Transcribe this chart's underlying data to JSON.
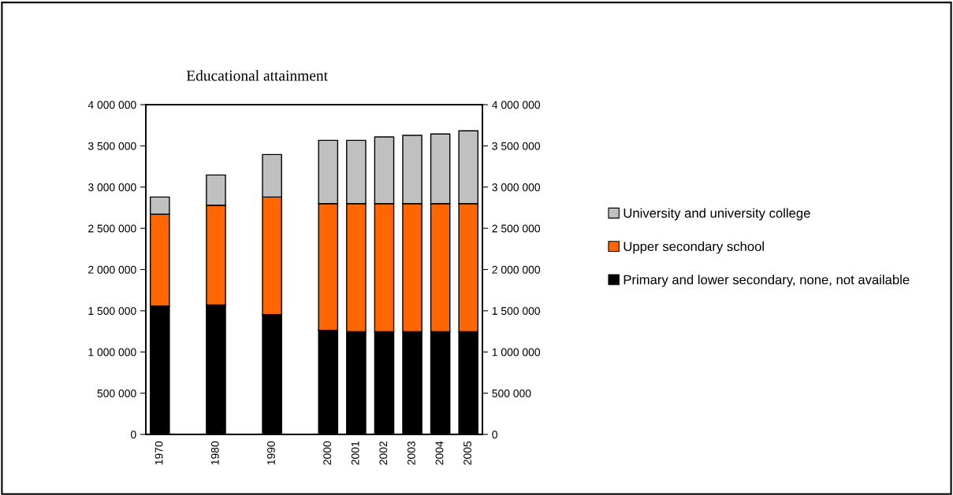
{
  "chart_data": {
    "type": "bar",
    "stacked": true,
    "title": "Educational attainment",
    "categories": [
      "1970",
      null,
      "1980",
      null,
      "1990",
      null,
      "2000",
      "2001",
      "2002",
      "2003",
      "2004",
      "2005"
    ],
    "series": [
      {
        "name": "Primary and lower secondary, none, not available",
        "color": "#000000",
        "values": [
          1556000,
          null,
          1572000,
          null,
          1454000,
          null,
          1263000,
          1247000,
          1247000,
          1247000,
          1247000,
          1247000
        ]
      },
      {
        "name": "Upper secondary school",
        "color": "#ff6600",
        "values": [
          1114000,
          null,
          1209000,
          null,
          1426000,
          null,
          1537000,
          1553000,
          1553000,
          1553000,
          1553000,
          1553000
        ]
      },
      {
        "name": "University and university college",
        "color": "#c0c0c0",
        "values": [
          210000,
          null,
          366000,
          null,
          515000,
          null,
          767000,
          767000,
          809000,
          828000,
          844000,
          882000
        ]
      }
    ],
    "ylim": [
      0,
      4000000
    ],
    "yticks": [
      0,
      {
        "value": 500000,
        "label": "500 000"
      },
      {
        "value": 1000000,
        "label": "1 000 000"
      },
      {
        "value": 1500000,
        "label": "1 500 000"
      },
      {
        "value": 2000000,
        "label": "2 000 000"
      },
      {
        "value": 2500000,
        "label": "2 500 000"
      },
      {
        "value": 3000000,
        "label": "3 000 000"
      },
      {
        "value": 3500000,
        "label": "3 500 000"
      },
      {
        "value": 4000000,
        "label": "4 000 000"
      }
    ],
    "y2lim": [
      0,
      4000000
    ],
    "y2ticks": [
      0,
      {
        "value": 500000,
        "label": "500 000"
      },
      {
        "value": 1000000,
        "label": "1 000 000"
      },
      {
        "value": 1500000,
        "label": "1 500 000"
      },
      {
        "value": 2000000,
        "label": "2 000 000"
      },
      {
        "value": 2500000,
        "label": "2 500 000"
      },
      {
        "value": 3000000,
        "label": "3 000 000"
      },
      {
        "value": 3500000,
        "label": "3 500 000"
      },
      {
        "value": 4000000,
        "label": "4 000 000"
      }
    ],
    "legend": "right",
    "grid": false
  }
}
